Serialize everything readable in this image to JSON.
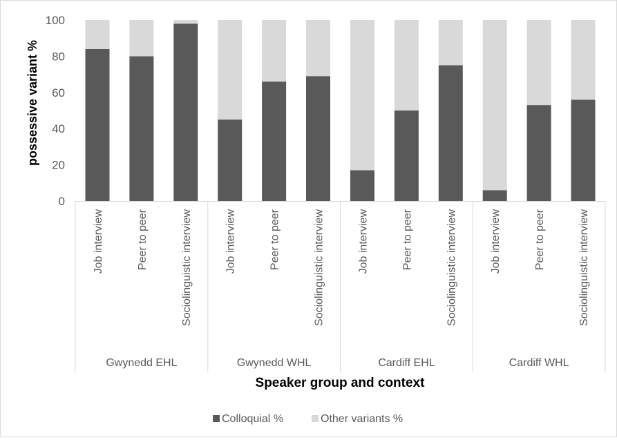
{
  "chart_data": {
    "type": "bar",
    "stacked": true,
    "groups": [
      {
        "label": "Gwynedd EHL",
        "contexts": [
          "Job interview",
          "Peer to peer",
          "Sociolinguistic interview"
        ]
      },
      {
        "label": "Gwynedd WHL",
        "contexts": [
          "Job interview",
          "Peer to peer",
          "Sociolinguistic interview"
        ]
      },
      {
        "label": "Cardiff EHL",
        "contexts": [
          "Job interview",
          "Peer to peer",
          "Sociolinguistic interview"
        ]
      },
      {
        "label": "Cardiff WHL",
        "contexts": [
          "Job interview",
          "Peer to peer",
          "Sociolinguistic interview"
        ]
      }
    ],
    "series": [
      {
        "name": "Colloquial %",
        "color": "#595959",
        "values": [
          84,
          80,
          98,
          45,
          66,
          69,
          17,
          50,
          75,
          6,
          53,
          56
        ]
      },
      {
        "name": "Other variants %",
        "color": "#d9d9d9",
        "values": [
          16,
          20,
          2,
          55,
          34,
          31,
          83,
          50,
          25,
          94,
          47,
          44
        ]
      }
    ],
    "xlabel": "Speaker group and context",
    "ylabel": "possessive variant %",
    "ylim": [
      0,
      100
    ],
    "yticks": [
      0,
      20,
      40,
      60,
      80,
      100
    ],
    "grid": false,
    "legend_position": "bottom"
  }
}
